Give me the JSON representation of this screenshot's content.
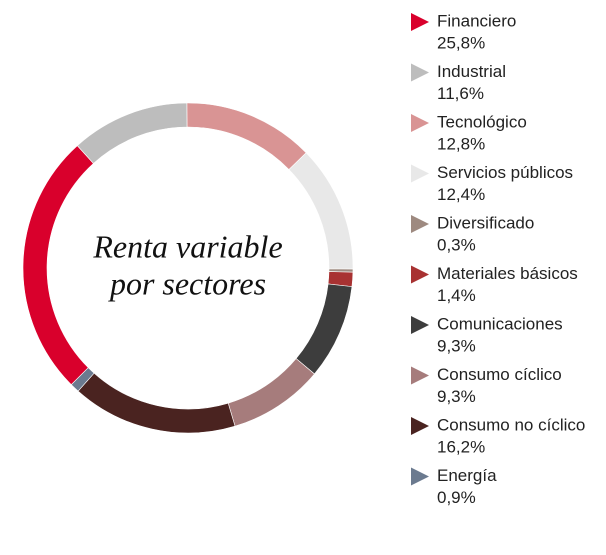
{
  "chart_data": {
    "type": "donut",
    "title": [
      "Renta variable",
      "por sectores"
    ],
    "categories": [
      "Financiero",
      "Industrial",
      "Tecnológico",
      "Servicios públicos",
      "Diversificado",
      "Materiales básicos",
      "Comunicaciones",
      "Consumo cíclico",
      "Consumo no cíclico",
      "Energía"
    ],
    "values": [
      25.8,
      11.6,
      12.8,
      12.4,
      0.3,
      1.4,
      9.3,
      9.3,
      16.2,
      0.9
    ],
    "value_labels": [
      "25,8%",
      "11,6%",
      "12,8%",
      "12,4%",
      "0,3%",
      "1,4%",
      "9,3%",
      "9,3%",
      "16,2%",
      "0,9%"
    ],
    "colors": [
      "#d9002c",
      "#bdbdbd",
      "#d99494",
      "#e8e8e8",
      "#9e8a80",
      "#a83232",
      "#3d3d3d",
      "#a67c7c",
      "#4a2320",
      "#6b7a8f"
    ]
  }
}
